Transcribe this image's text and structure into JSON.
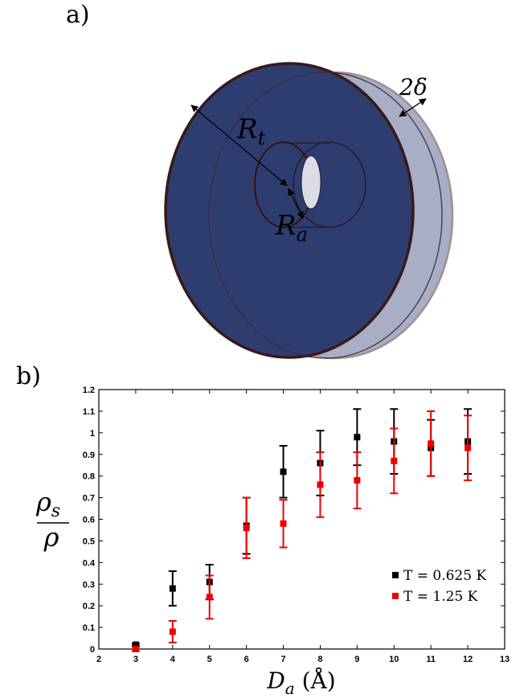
{
  "panel_labels": [
    "a)",
    "b)"
  ],
  "diagram": {
    "outer_radius_label": {
      "base": "R",
      "sub": "t"
    },
    "inner_radius_label": {
      "base": "R",
      "sub": "a"
    },
    "thickness_label": "2δ"
  },
  "chart_data": {
    "type": "errorbar",
    "x_label": {
      "base": "D",
      "sub": "a",
      "rest": " (Å)"
    },
    "y_label": {
      "numerator_base": "ρ",
      "numerator_sub": "s",
      "denominator": "ρ"
    },
    "xlim": [
      2,
      13
    ],
    "xticks": [
      2,
      3,
      4,
      5,
      6,
      7,
      8,
      9,
      10,
      11,
      12,
      13
    ],
    "ylim": [
      0,
      1.2
    ],
    "yticks": [
      0,
      0.1,
      0.2,
      0.3,
      0.4,
      0.5,
      0.6,
      0.7,
      0.8,
      0.9,
      1,
      1.1,
      1.2
    ],
    "legend": "lower right",
    "series": [
      {
        "name": "T = 0.625 K",
        "color": "#000000",
        "x": [
          3,
          4,
          5,
          6,
          7,
          8,
          9,
          10,
          11,
          12
        ],
        "values": [
          0.02,
          0.28,
          0.31,
          0.57,
          0.82,
          0.86,
          0.98,
          0.96,
          0.93,
          0.96
        ],
        "errors": [
          0.005,
          0.08,
          0.08,
          0.13,
          0.12,
          0.15,
          0.13,
          0.15,
          0.13,
          0.15
        ]
      },
      {
        "name": "T = 1.25 K",
        "color": "#ee0000",
        "x": [
          3,
          4,
          5,
          6,
          7,
          8,
          9,
          10,
          11,
          12
        ],
        "values": [
          0.0,
          0.08,
          0.24,
          0.56,
          0.58,
          0.76,
          0.78,
          0.87,
          0.95,
          0.93
        ],
        "errors": [
          0.01,
          0.05,
          0.1,
          0.14,
          0.11,
          0.15,
          0.13,
          0.15,
          0.15,
          0.15
        ]
      }
    ]
  }
}
